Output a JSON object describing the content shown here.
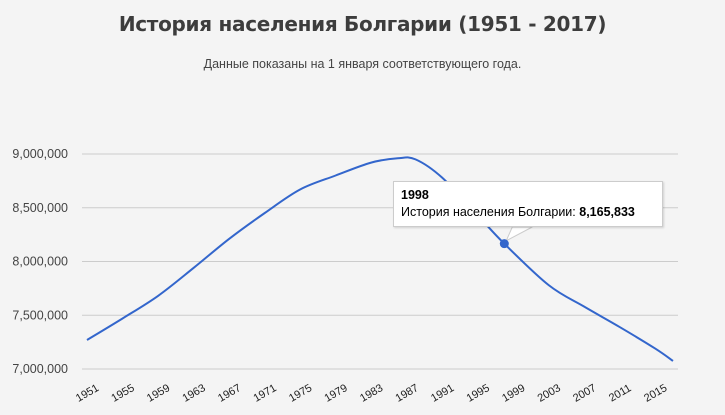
{
  "header": {
    "title": "История населения Болгарии (1951 - 2017)",
    "subtitle": "Данные показаны на 1 января соответствующего года."
  },
  "tooltip": {
    "year": "1998",
    "label": "История населения Болгарии:",
    "value": "8,165,833"
  },
  "colors": {
    "line": "#3366cc",
    "grid": "#cccccc",
    "background": "#f4f4f4",
    "text": "#444444"
  },
  "chart_data": {
    "type": "line",
    "title": "История населения Болгарии (1951 - 2017)",
    "subtitle": "Данные показаны на 1 января соответствующего года.",
    "xlabel": "",
    "ylabel": "",
    "ylim": [
      7000000,
      9000000
    ],
    "yticks": [
      7000000,
      7500000,
      8000000,
      8500000,
      9000000
    ],
    "ytick_labels": [
      "7,000,000",
      "7,500,000",
      "8,000,000",
      "8,500,000",
      "9,000,000"
    ],
    "xtick_labels": [
      "1951",
      "1955",
      "1959",
      "1963",
      "1967",
      "1971",
      "1975",
      "1979",
      "1983",
      "1987",
      "1991",
      "1995",
      "1999",
      "2003",
      "2007",
      "2011",
      "2015"
    ],
    "grid": true,
    "legend": "none",
    "series": [
      {
        "name": "История населения Болгарии",
        "x": [
          1951,
          1955,
          1959,
          1963,
          1967,
          1971,
          1975,
          1979,
          1983,
          1986,
          1988,
          1991,
          1995,
          1998,
          2003,
          2007,
          2011,
          2015,
          2017
        ],
        "values": [
          7270000,
          7470000,
          7680000,
          7940000,
          8210000,
          8450000,
          8670000,
          8800000,
          8920000,
          8960000,
          8950000,
          8780000,
          8430000,
          8165833,
          7780000,
          7580000,
          7390000,
          7190000,
          7075000
        ]
      }
    ],
    "highlight": {
      "x": 1998,
      "value": 8165833
    }
  }
}
